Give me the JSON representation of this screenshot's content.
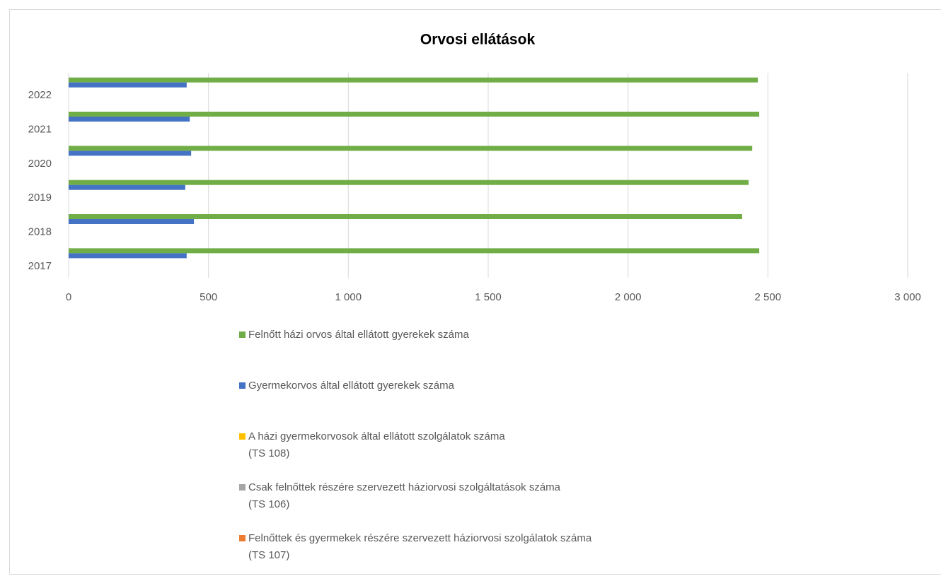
{
  "chart_data": {
    "type": "hbar",
    "title": "Orvosi ellátások",
    "categories": [
      "2017",
      "2018",
      "2019",
      "2020",
      "2021",
      "2022"
    ],
    "series": [
      {
        "name": "Felnőtt házi orvos által ellátott gyerekek száma",
        "color": "#70ad47",
        "values": [
          2469,
          2408,
          2431,
          2444,
          2469,
          2464
        ]
      },
      {
        "name": "Gyermekorvos által ellátott gyerekek száma",
        "color": "#4472c4",
        "values": [
          422,
          448,
          417,
          438,
          433,
          422
        ]
      },
      {
        "name": "A házi gyermekorvosok által ellátott szolgálatok száma\n(TS 108)",
        "color": "#ffc000",
        "values": [
          null,
          null,
          null,
          null,
          null,
          null
        ]
      },
      {
        "name": "Csak felnőttek részére szervezett háziorvosi szolgáltatások száma\n(TS 106)",
        "color": "#a5a5a5",
        "values": [
          null,
          null,
          null,
          null,
          null,
          null
        ]
      },
      {
        "name": "Felnőttek és gyermekek részére szervezett háziorvosi szolgálatok száma\n(TS 107)",
        "color": "#ed7d31",
        "values": [
          null,
          null,
          null,
          null,
          null,
          null
        ]
      }
    ],
    "xlim": [
      0,
      3000
    ],
    "xticks": [
      0,
      500,
      {
        "value": 1000,
        "label": "1 000"
      },
      {
        "value": 1500,
        "label": "1 500"
      },
      {
        "value": 2000,
        "label": "2 000"
      },
      {
        "value": 2500,
        "label": "2 500"
      },
      {
        "value": 3000,
        "label": "3 000"
      }
    ],
    "grid": true
  }
}
